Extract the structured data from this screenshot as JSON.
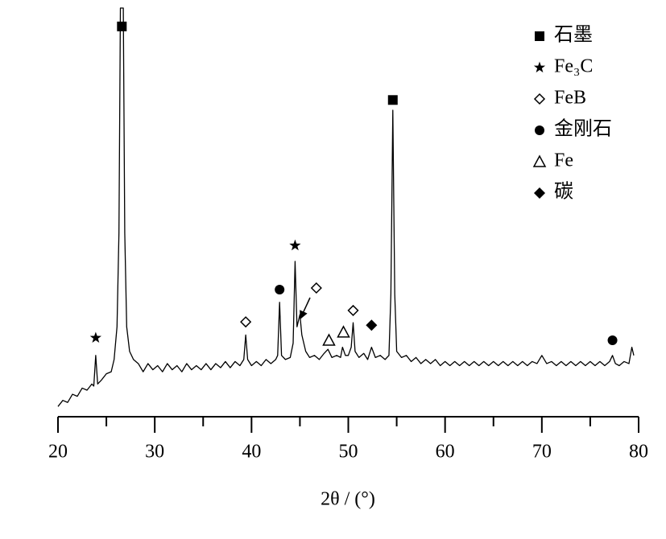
{
  "chart_data": {
    "type": "line",
    "xlabel": "2θ / (°)",
    "xlim": [
      20,
      80
    ],
    "ylim": [
      0,
      100
    ],
    "xticks": [
      20,
      30,
      40,
      50,
      60,
      70,
      80
    ],
    "xminorticks": [
      25,
      35,
      45,
      55,
      65,
      75
    ],
    "color": "#000000",
    "x": [
      20,
      20.5,
      21,
      21.5,
      22,
      22.5,
      23,
      23.5,
      23.7,
      23.9,
      24.1,
      24.5,
      25,
      25.5,
      25.8,
      26.1,
      26.3,
      26.45,
      26.75,
      26.9,
      27.1,
      27.4,
      27.8,
      28.3,
      28.8,
      29.3,
      29.8,
      30.3,
      30.8,
      31.3,
      31.8,
      32.3,
      32.8,
      33.3,
      33.8,
      34.3,
      34.8,
      35.3,
      35.8,
      36.3,
      36.8,
      37.3,
      37.8,
      38.3,
      38.8,
      39.2,
      39.4,
      39.6,
      40,
      40.5,
      41,
      41.5,
      42,
      42.5,
      42.7,
      42.9,
      43.1,
      43.5,
      44,
      44.3,
      44.5,
      44.7,
      45,
      45.2,
      45.6,
      46,
      46.5,
      47,
      47.5,
      47.9,
      48.3,
      48.8,
      49.2,
      49.4,
      49.7,
      50,
      50.3,
      50.5,
      50.7,
      51.1,
      51.6,
      52,
      52.4,
      52.8,
      53.3,
      53.8,
      54.2,
      54.4,
      54.6,
      54.8,
      55,
      55.5,
      56,
      56.5,
      57,
      57.5,
      58,
      58.5,
      59,
      59.5,
      60,
      60.5,
      61,
      61.5,
      62,
      62.5,
      63,
      63.5,
      64,
      64.5,
      65,
      65.5,
      66,
      66.5,
      67,
      67.5,
      68,
      68.5,
      69,
      69.5,
      70,
      70.5,
      71,
      71.5,
      72,
      72.5,
      73,
      73.5,
      74,
      74.5,
      75,
      75.5,
      76,
      76.5,
      77,
      77.3,
      77.6,
      78,
      78.5,
      79,
      79.3,
      79.5
    ],
    "values": [
      2.5,
      4,
      3.5,
      5.5,
      5,
      7,
      6.5,
      8,
      7.5,
      15,
      8,
      9,
      10.5,
      11,
      14,
      22,
      45,
      100,
      100,
      45,
      22,
      16,
      14,
      13,
      11,
      13,
      11.5,
      12.5,
      11,
      13,
      11.5,
      12.5,
      11,
      13,
      11.5,
      12.5,
      11.5,
      13,
      11.5,
      13,
      12,
      13.5,
      12,
      13.5,
      12.5,
      14,
      20,
      14,
      12.5,
      13.5,
      12.5,
      14,
      13,
      14,
      15,
      28,
      15,
      14,
      14.5,
      18,
      38,
      22,
      25,
      20,
      16,
      14.5,
      15,
      14,
      15.5,
      16.5,
      14.5,
      15,
      14.5,
      17,
      15,
      15,
      17,
      23,
      16,
      14.5,
      15.5,
      14,
      17,
      14.5,
      15,
      14,
      15,
      30,
      75,
      30,
      16,
      14.5,
      15,
      13.5,
      14.5,
      13,
      14,
      13,
      14,
      12.5,
      13.5,
      12.5,
      13.5,
      12.5,
      13.5,
      12.5,
      13.5,
      12.5,
      13.5,
      12.5,
      13.5,
      12.5,
      13.5,
      12.5,
      13.5,
      12.5,
      13.5,
      12.5,
      13.5,
      13,
      15,
      13,
      13.5,
      12.5,
      13.5,
      12.5,
      13.5,
      12.5,
      13.5,
      12.5,
      13.5,
      12.5,
      13.5,
      12.5,
      13.5,
      15,
      13,
      12.5,
      13.5,
      13,
      17,
      15
    ],
    "legend": [
      {
        "name": "石墨",
        "symbol": "square"
      },
      {
        "name": "Fe₃C",
        "symbol": "star"
      },
      {
        "name": "FeB",
        "symbol": "diamond-open"
      },
      {
        "name": "金刚石",
        "symbol": "circle"
      },
      {
        "name": "Fe",
        "symbol": "triangle-open"
      },
      {
        "name": "碳",
        "symbol": "diamond"
      }
    ],
    "markers": [
      {
        "symbol": "square",
        "x": 26.6,
        "y": 95.5
      },
      {
        "symbol": "star",
        "x": 23.9,
        "y": 19.3
      },
      {
        "symbol": "diamond-open",
        "x": 39.4,
        "y": 23.2
      },
      {
        "symbol": "circle",
        "x": 42.9,
        "y": 31.1
      },
      {
        "symbol": "star",
        "x": 44.5,
        "y": 41.9
      },
      {
        "symbol": "diamond-open",
        "x": 46.7,
        "y": 31.5
      },
      {
        "symbol": "triangle-open",
        "x": 48.0,
        "y": 18.7
      },
      {
        "symbol": "triangle-open",
        "x": 49.5,
        "y": 20.7
      },
      {
        "symbol": "diamond-open",
        "x": 50.5,
        "y": 26
      },
      {
        "symbol": "diamond",
        "x": 52.4,
        "y": 22.4
      },
      {
        "symbol": "square",
        "x": 54.6,
        "y": 77.5
      },
      {
        "symbol": "circle",
        "x": 77.3,
        "y": 18.7
      }
    ]
  }
}
